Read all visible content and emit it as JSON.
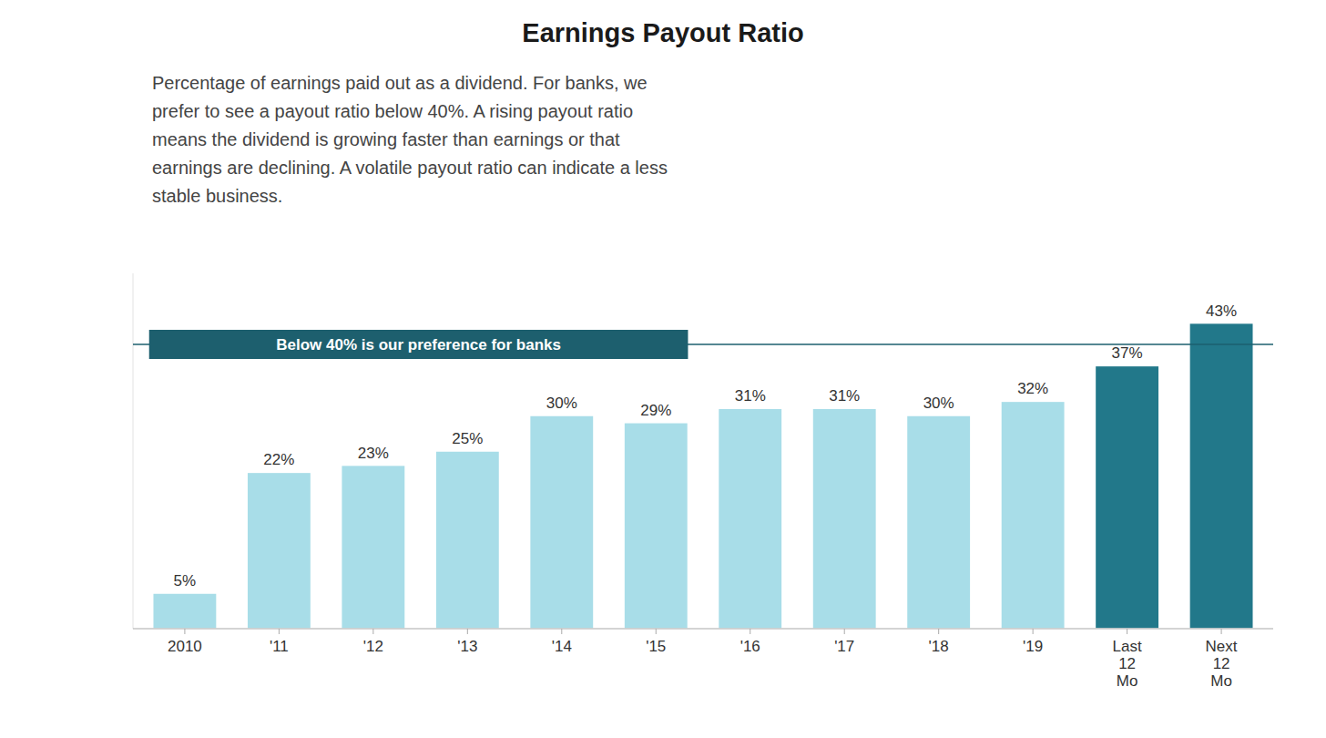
{
  "chart_data": {
    "type": "bar",
    "title": "Earnings Payout Ratio",
    "subtitle": [
      "Percentage of earnings paid out as a dividend. For banks, we",
      "prefer to see a payout ratio below 40%. A rising payout ratio",
      "means the dividend is growing faster than earnings or that",
      "earnings are declining. A volatile payout ratio can indicate a less",
      "stable business."
    ],
    "categories": [
      "2010",
      "'11",
      "'12",
      "'13",
      "'14",
      "'15",
      "'16",
      "'17",
      "'18",
      "'19",
      "Last\n12\nMo",
      "Next\n12\nMo"
    ],
    "values": [
      5,
      22,
      23,
      25,
      30,
      29,
      31,
      31,
      30,
      32,
      37,
      43
    ],
    "value_labels": [
      "5%",
      "22%",
      "23%",
      "25%",
      "30%",
      "29%",
      "31%",
      "31%",
      "30%",
      "32%",
      "37%",
      "43%"
    ],
    "colors": [
      "#a8dde8",
      "#a8dde8",
      "#a8dde8",
      "#a8dde8",
      "#a8dde8",
      "#a8dde8",
      "#a8dde8",
      "#a8dde8",
      "#a8dde8",
      "#a8dde8",
      "#22788a",
      "#22788a"
    ],
    "data_labels": true,
    "ylim": [
      0,
      50
    ],
    "yticks": [],
    "tick_labels": "x",
    "grid": false,
    "annotations": [
      {
        "text": "Below 40% is our preference for banks",
        "y": 40,
        "color": "#1d5f6e"
      }
    ]
  }
}
